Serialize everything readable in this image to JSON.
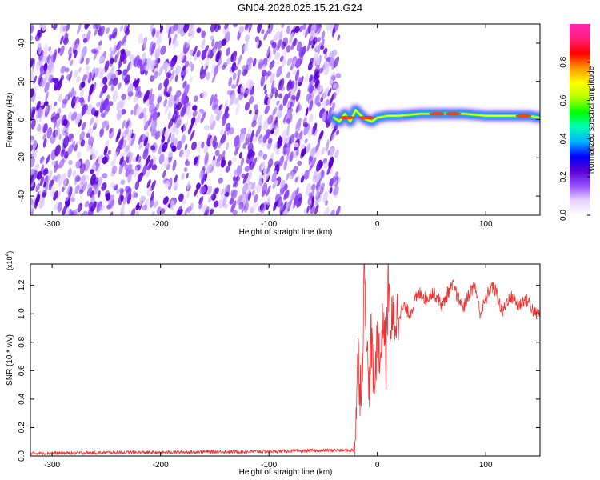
{
  "figure_title": "GN04.2026.025.15.21.G24",
  "chart_data": [
    {
      "type": "heatmap",
      "title": "",
      "xlabel": "Height of straight line (km)",
      "ylabel": "Frequency (Hz)",
      "xlim": [
        -320,
        150
      ],
      "ylim": [
        -50,
        50
      ],
      "xticks": [
        -300,
        -200,
        -100,
        0,
        100
      ],
      "yticks": [
        -40,
        -20,
        0,
        20,
        40
      ],
      "noise_region_x": [
        -320,
        -40
      ],
      "ridge": {
        "name": "",
        "x": [
          -40,
          -35,
          -30,
          -25,
          -20,
          -15,
          -10,
          -5,
          0,
          10,
          20,
          40,
          60,
          80,
          100,
          120,
          140,
          150
        ],
        "y": [
          1,
          -1,
          3,
          -1,
          5,
          2,
          0,
          -1,
          1,
          2,
          2,
          3,
          3,
          3,
          2,
          2,
          2,
          1
        ]
      },
      "colorbar": {
        "label": "Normalized spectral amplitude",
        "range": [
          0,
          1
        ],
        "ticks": [
          "0.0",
          "0.2",
          "0.4",
          "0.6",
          "0.8"
        ],
        "colors": [
          "#ffffff",
          "#e6d2ff",
          "#9650ff",
          "#5a00d2",
          "#0000ff",
          "#00b4ff",
          "#00ffb4",
          "#00ff00",
          "#b4ff00",
          "#ffff00",
          "#ff9600",
          "#ff0000",
          "#ff1e78",
          "#ff28b4"
        ]
      }
    },
    {
      "type": "line",
      "title": "",
      "xlabel": "Height of straight line (km)",
      "ylabel": "SNR (10 * v/v)",
      "yscale_label": "(x10",
      "yscale_exp": "4",
      "xlim": [
        -320,
        150
      ],
      "ylim": [
        0,
        1.35
      ],
      "xticks": [
        -300,
        -200,
        -100,
        0,
        100
      ],
      "yticks": [
        "0.0",
        "0.2",
        "0.4",
        "0.6",
        "0.8",
        "1.0",
        "1.2"
      ],
      "series": [
        {
          "name": "",
          "color": "#ee3333",
          "x": [
            -320,
            -280,
            -240,
            -200,
            -160,
            -120,
            -80,
            -40,
            -22,
            -20,
            -18,
            -16,
            -14,
            -12,
            -10,
            -8,
            -6,
            -4,
            -2,
            0,
            2,
            4,
            6,
            8,
            10,
            12,
            15,
            20,
            25,
            30,
            35,
            40,
            45,
            50,
            55,
            60,
            65,
            70,
            75,
            80,
            85,
            90,
            95,
            100,
            105,
            110,
            115,
            120,
            125,
            130,
            135,
            140,
            145,
            150
          ],
          "y": [
            0.02,
            0.02,
            0.025,
            0.025,
            0.03,
            0.03,
            0.035,
            0.04,
            0.04,
            0.2,
            0.7,
            0.5,
            0.6,
            1.35,
            0.9,
            0.4,
            0.85,
            0.6,
            0.5,
            0.95,
            0.65,
            0.8,
            1.0,
            0.65,
            1.25,
            0.9,
            0.95,
            1.0,
            1.05,
            1.0,
            1.1,
            1.15,
            1.1,
            1.15,
            1.12,
            1.05,
            1.15,
            1.2,
            1.1,
            1.05,
            1.15,
            1.2,
            1.0,
            1.1,
            1.2,
            1.15,
            1.0,
            1.1,
            1.12,
            1.05,
            1.1,
            1.08,
            1.0,
            1.0
          ]
        }
      ]
    }
  ]
}
